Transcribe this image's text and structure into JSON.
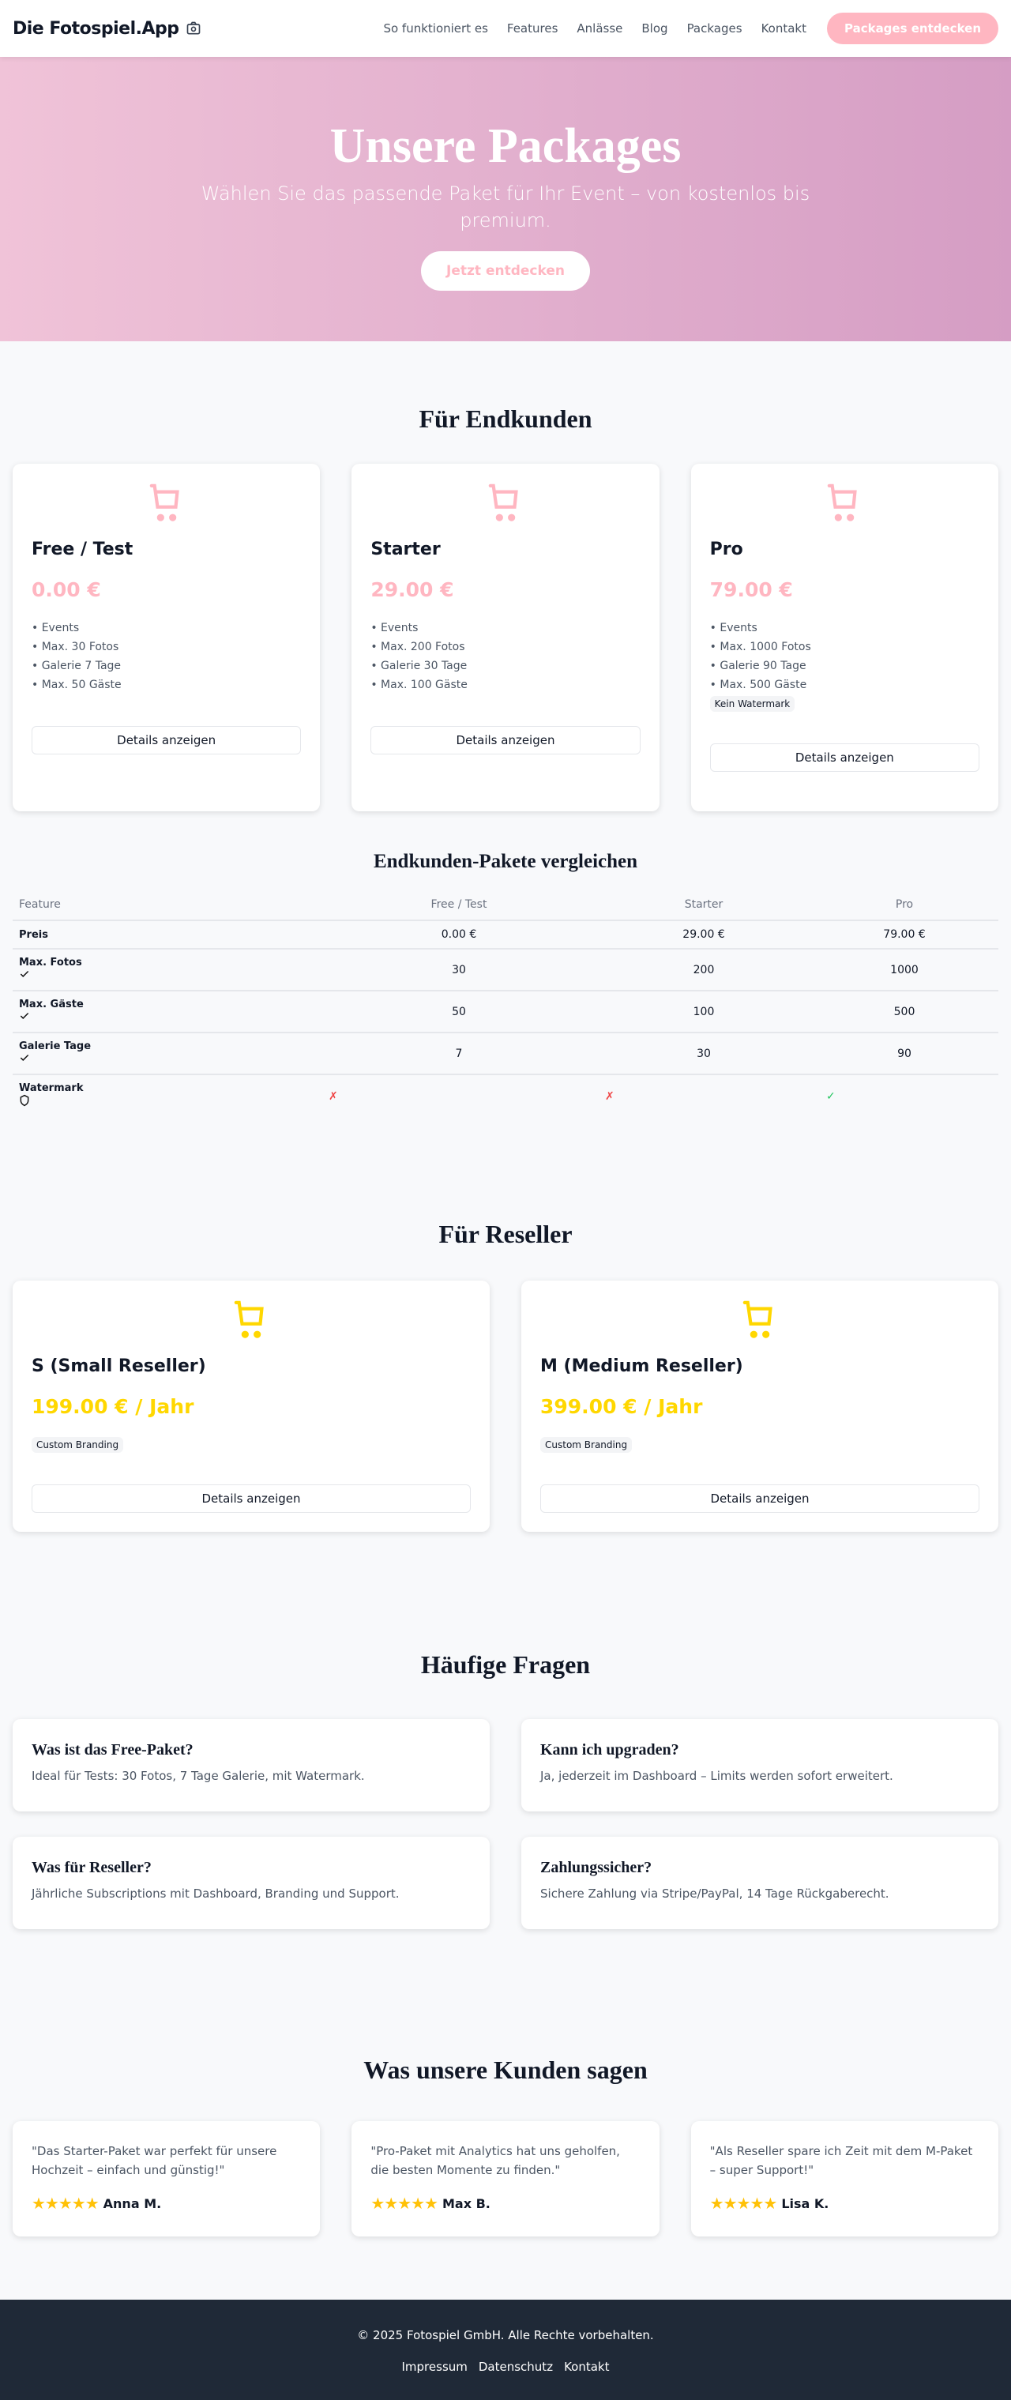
{
  "nav": {
    "logo": "Die Fotospiel.App",
    "logo_icon": "camera-icon",
    "links": [
      "So funktioniert es",
      "Features",
      "Anlässe",
      "Blog",
      "Packages",
      "Kontakt"
    ],
    "cta": "Packages entdecken"
  },
  "hero": {
    "title": "Unsere Packages",
    "subtitle": "Wählen Sie das passende Paket für Ihr Event – von kostenlos bis premium.",
    "cta": "Jetzt entdecken"
  },
  "colors": {
    "accent": "#ffb6c1",
    "reseller": "#ffd700",
    "footer": "#1f2937"
  },
  "endkunden": {
    "title": "Für Endkunden",
    "button": "Details anzeigen",
    "packages": [
      {
        "name": "Free / Test",
        "price": "0.00 €",
        "features": [
          "• Events",
          "• Max. 30 Fotos",
          "• Galerie 7 Tage",
          "• Max. 50 Gäste"
        ],
        "badge": null
      },
      {
        "name": "Starter",
        "price": "29.00 €",
        "features": [
          "• Events",
          "• Max. 200 Fotos",
          "• Galerie 30 Tage",
          "• Max. 100 Gäste"
        ],
        "badge": null
      },
      {
        "name": "Pro",
        "price": "79.00 €",
        "features": [
          "• Events",
          "• Max. 1000 Fotos",
          "• Galerie 90 Tage",
          "• Max. 500 Gäste"
        ],
        "badge": "Kein Watermark"
      }
    ]
  },
  "compare": {
    "title": "Endkunden-Pakete vergleichen",
    "headers": [
      "Feature",
      "Free / Test",
      "Starter",
      "Pro"
    ],
    "rows": [
      {
        "label": "Preis",
        "icon": null,
        "values": [
          "0.00 €",
          "29.00 €",
          "79.00 €"
        ]
      },
      {
        "label": "Max. Fotos",
        "icon": "check-icon",
        "values": [
          "30",
          "200",
          "1000"
        ]
      },
      {
        "label": "Max. Gäste",
        "icon": "check-icon",
        "values": [
          "50",
          "100",
          "500"
        ]
      },
      {
        "label": "Galerie Tage",
        "icon": "check-icon",
        "values": [
          "7",
          "30",
          "90"
        ]
      }
    ],
    "watermark": {
      "label": "Watermark",
      "icon": "shield-icon",
      "values": [
        false,
        false,
        true
      ]
    }
  },
  "reseller": {
    "title": "Für Reseller",
    "button": "Details anzeigen",
    "packages": [
      {
        "name": "S (Small Reseller)",
        "price": "199.00 € / Jahr",
        "badge": "Custom Branding"
      },
      {
        "name": "M (Medium Reseller)",
        "price": "399.00 € / Jahr",
        "badge": "Custom Branding"
      }
    ]
  },
  "faq": {
    "title": "Häufige Fragen",
    "items": [
      {
        "q": "Was ist das Free-Paket?",
        "a": "Ideal für Tests: 30 Fotos, 7 Tage Galerie, mit Watermark."
      },
      {
        "q": "Kann ich upgraden?",
        "a": "Ja, jederzeit im Dashboard – Limits werden sofort erweitert."
      },
      {
        "q": "Was für Reseller?",
        "a": "Jährliche Subscriptions mit Dashboard, Branding und Support."
      },
      {
        "q": "Zahlungssicher?",
        "a": "Sichere Zahlung via Stripe/PayPal, 14 Tage Rückgaberecht."
      }
    ]
  },
  "testimonials": {
    "title": "Was unsere Kunden sagen",
    "items": [
      {
        "text": "\"Das Starter-Paket war perfekt für unsere Hochzeit – einfach und günstig!\"",
        "name": "Anna M.",
        "rating": 5
      },
      {
        "text": "\"Pro-Paket mit Analytics hat uns geholfen, die besten Momente zu finden.\"",
        "name": "Max B.",
        "rating": 5
      },
      {
        "text": "\"Als Reseller spare ich Zeit mit dem M-Paket – super Support!\"",
        "name": "Lisa K.",
        "rating": 5
      }
    ]
  },
  "footer": {
    "copyright": "© 2025 Fotospiel GmbH. Alle Rechte vorbehalten.",
    "links": [
      "Impressum",
      "Datenschutz",
      "Kontakt"
    ]
  }
}
